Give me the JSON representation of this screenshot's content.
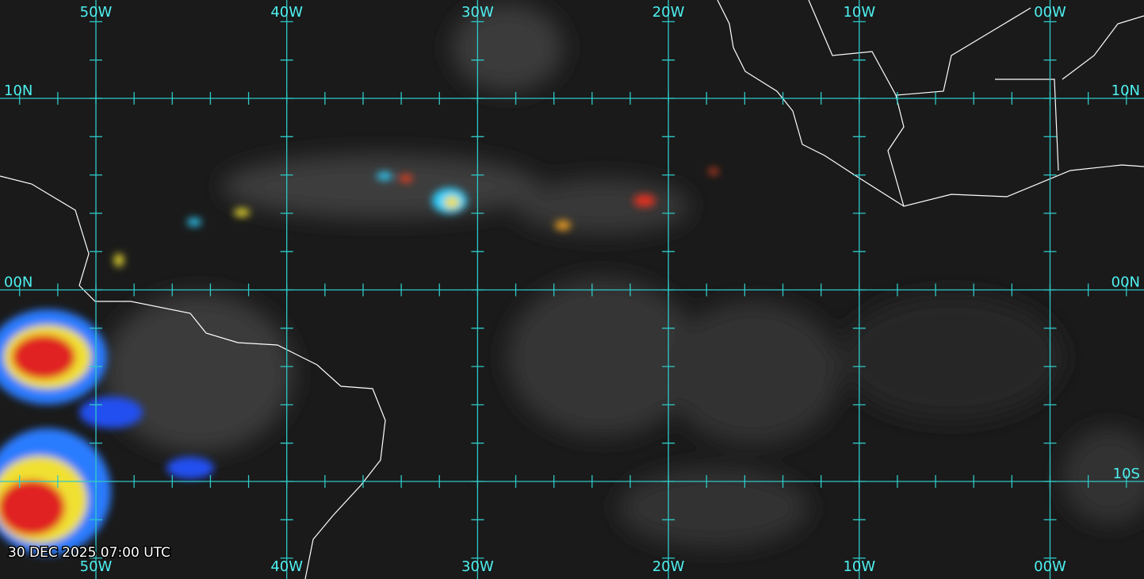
{
  "map": {
    "longitude_labels_top": [
      "50W",
      "40W",
      "30W",
      "20W",
      "10W",
      "00W"
    ],
    "longitude_labels_bottom": [
      "50W",
      "40W",
      "30W",
      "20W",
      "10W",
      "00W"
    ],
    "latitude_labels_left": [
      "10N",
      "00N"
    ],
    "latitude_labels_right": [
      "10N",
      "00N",
      "10S"
    ],
    "timestamp": "30 DEC 2025 07:00 UTC"
  }
}
